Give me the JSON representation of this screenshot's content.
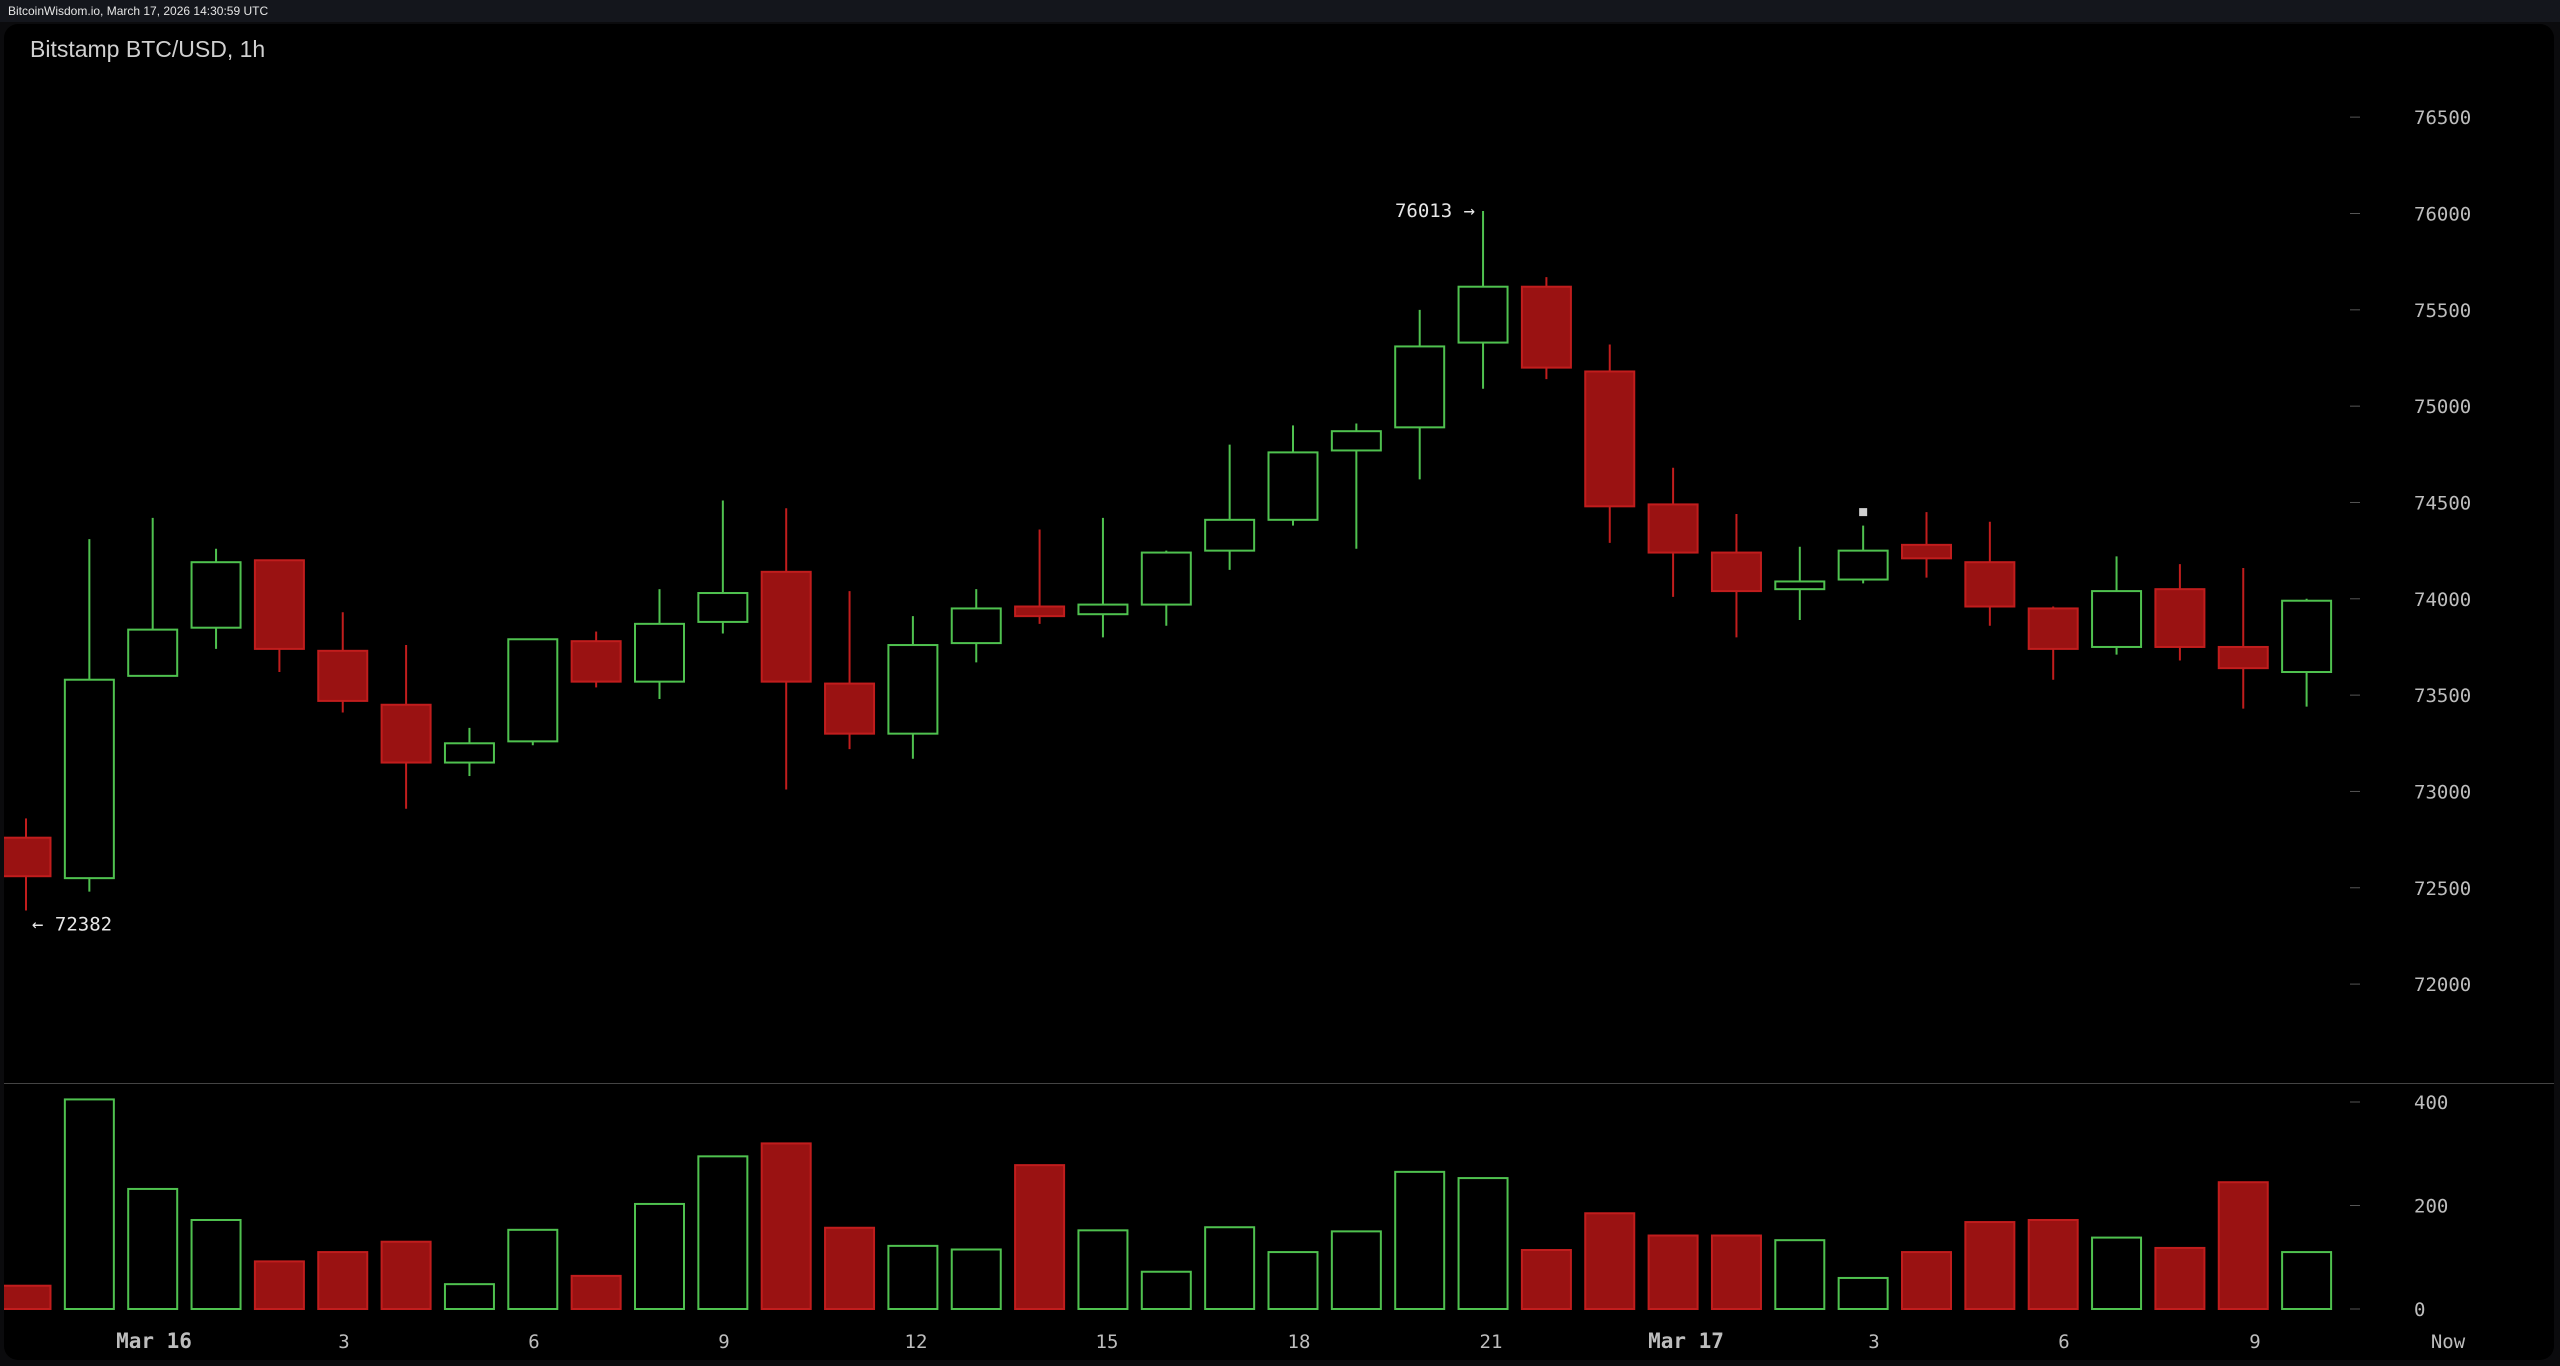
{
  "header": {
    "text": "BitcoinWisdom.io, March 17, 2026 14:30:59 UTC"
  },
  "chart_title": "Bitstamp BTC/USD, 1h",
  "colors": {
    "up": "#4fc14f",
    "down": "#9a1212",
    "down_border": "#c11d1d",
    "grid": "#3a3a3a",
    "text": "#bdbdbd",
    "background": "#000000"
  },
  "chart_data": [
    {
      "type": "candlestick",
      "price_axis_ticks": [
        "76500",
        "76000",
        "75500",
        "75000",
        "74500",
        "74000",
        "73500",
        "73000",
        "72500",
        "72000"
      ],
      "x_tick_labels": [
        "Mar 16",
        "3",
        "6",
        "9",
        "12",
        "15",
        "18",
        "21",
        "Mar 17",
        "3",
        "6",
        "9",
        "Now"
      ],
      "annotations": {
        "high": "76013 →",
        "low": "← 72382"
      },
      "candles": [
        {
          "o": 72760,
          "h": 72860,
          "l": 72382,
          "c": 72560
        },
        {
          "o": 72550,
          "h": 74310,
          "l": 72480,
          "c": 73580
        },
        {
          "o": 73600,
          "h": 74420,
          "l": 73600,
          "c": 73840
        },
        {
          "o": 73850,
          "h": 74260,
          "l": 73740,
          "c": 74190
        },
        {
          "o": 74200,
          "h": 74200,
          "l": 73620,
          "c": 73740
        },
        {
          "o": 73730,
          "h": 73930,
          "l": 73410,
          "c": 73470
        },
        {
          "o": 73450,
          "h": 73760,
          "l": 72910,
          "c": 73150
        },
        {
          "o": 73150,
          "h": 73330,
          "l": 73080,
          "c": 73250
        },
        {
          "o": 73260,
          "h": 73790,
          "l": 73240,
          "c": 73790
        },
        {
          "o": 73780,
          "h": 73830,
          "l": 73540,
          "c": 73570
        },
        {
          "o": 73570,
          "h": 74050,
          "l": 73480,
          "c": 73870
        },
        {
          "o": 73880,
          "h": 74510,
          "l": 73820,
          "c": 74030
        },
        {
          "o": 74140,
          "h": 74470,
          "l": 73010,
          "c": 73570
        },
        {
          "o": 73560,
          "h": 74040,
          "l": 73220,
          "c": 73300
        },
        {
          "o": 73300,
          "h": 73910,
          "l": 73170,
          "c": 73760
        },
        {
          "o": 73770,
          "h": 74050,
          "l": 73670,
          "c": 73950
        },
        {
          "o": 73960,
          "h": 74360,
          "l": 73870,
          "c": 73910
        },
        {
          "o": 73920,
          "h": 74420,
          "l": 73800,
          "c": 73970
        },
        {
          "o": 73970,
          "h": 74250,
          "l": 73860,
          "c": 74240
        },
        {
          "o": 74250,
          "h": 74800,
          "l": 74150,
          "c": 74410
        },
        {
          "o": 74410,
          "h": 74900,
          "l": 74380,
          "c": 74760
        },
        {
          "o": 74770,
          "h": 74910,
          "l": 74260,
          "c": 74870
        },
        {
          "o": 74890,
          "h": 75500,
          "l": 74620,
          "c": 75310
        },
        {
          "o": 75330,
          "h": 76013,
          "l": 75090,
          "c": 75620
        },
        {
          "o": 75620,
          "h": 75670,
          "l": 75140,
          "c": 75200
        },
        {
          "o": 75180,
          "h": 75320,
          "l": 74290,
          "c": 74480
        },
        {
          "o": 74490,
          "h": 74680,
          "l": 74010,
          "c": 74240
        },
        {
          "o": 74240,
          "h": 74440,
          "l": 73800,
          "c": 74040
        },
        {
          "o": 74050,
          "h": 74270,
          "l": 73890,
          "c": 74090
        },
        {
          "o": 74100,
          "h": 74380,
          "l": 74080,
          "c": 74250
        },
        {
          "o": 74280,
          "h": 74450,
          "l": 74110,
          "c": 74210
        },
        {
          "o": 74190,
          "h": 74400,
          "l": 73860,
          "c": 73960
        },
        {
          "o": 73950,
          "h": 73960,
          "l": 73580,
          "c": 73740
        },
        {
          "o": 73750,
          "h": 74220,
          "l": 73710,
          "c": 74040
        },
        {
          "o": 74050,
          "h": 74180,
          "l": 73680,
          "c": 73750
        },
        {
          "o": 73750,
          "h": 74160,
          "l": 73430,
          "c": 73640
        },
        {
          "o": 73620,
          "h": 74000,
          "l": 73440,
          "c": 73990
        }
      ],
      "marker": {
        "candle_index": 29,
        "price": 74450
      }
    },
    {
      "type": "bar",
      "y_axis_ticks": [
        "400",
        "200",
        "0"
      ],
      "volume": [
        45,
        405,
        232,
        172,
        92,
        110,
        130,
        48,
        153,
        64,
        203,
        295,
        320,
        157,
        122,
        115,
        278,
        152,
        72,
        158,
        110,
        150,
        265,
        253,
        114,
        185,
        142,
        142,
        133,
        60,
        110,
        168,
        172,
        138,
        118,
        245,
        110
      ]
    }
  ]
}
